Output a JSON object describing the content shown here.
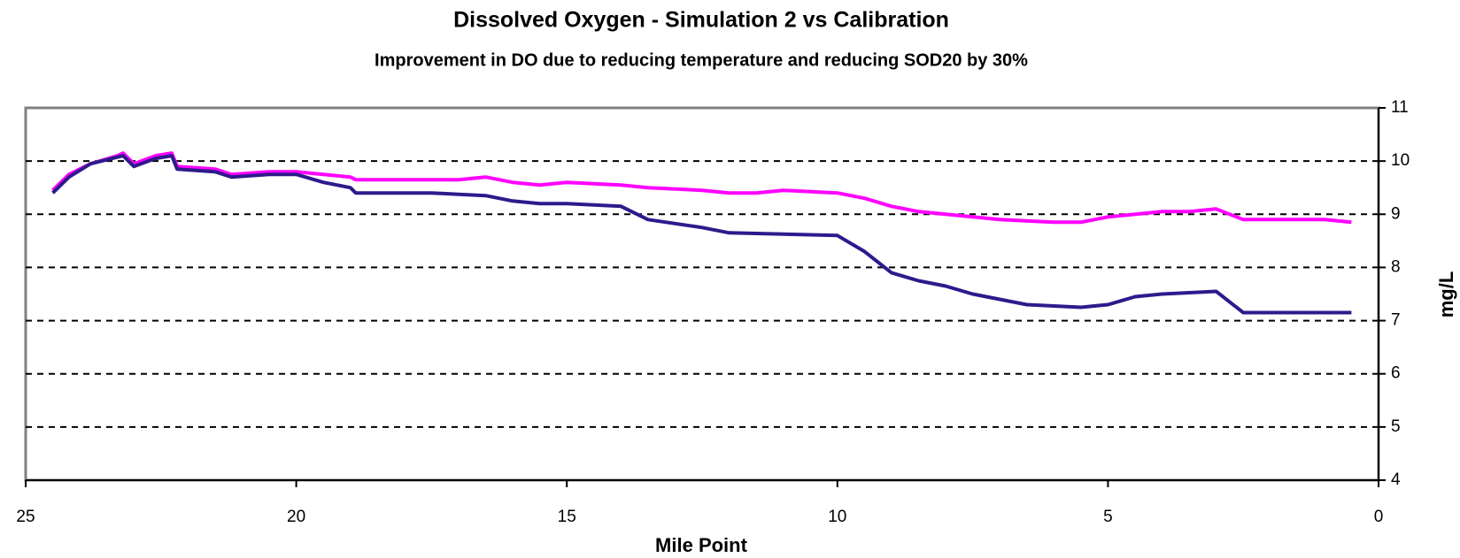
{
  "chart_data": {
    "type": "line",
    "title": "Dissolved Oxygen - Simulation 2 vs Calibration",
    "subtitle": "Improvement in DO due to reducing temperature and reducing SOD20 by 30%",
    "xlabel": "Mile Point",
    "ylabel": "mg/L",
    "xlim": [
      25,
      0
    ],
    "xticks": [
      25,
      20,
      15,
      10,
      5,
      0
    ],
    "ylim": [
      4,
      11
    ],
    "yticks": [
      4,
      5,
      6,
      7,
      8,
      9,
      10,
      11
    ],
    "grid": true,
    "y_axis_side": "right",
    "series": [
      {
        "color": "#ff00ff",
        "x": [
          24.5,
          24.2,
          23.8,
          23.3,
          23.2,
          23.0,
          22.6,
          22.3,
          22.2,
          21.5,
          21.2,
          20.5,
          20.0,
          19.5,
          19.0,
          18.9,
          17.0,
          16.5,
          16.0,
          15.5,
          15.0,
          14.0,
          13.5,
          12.5,
          12.0,
          11.5,
          11.0,
          10.0,
          9.5,
          9.0,
          8.5,
          8.0,
          7.0,
          6.0,
          5.5,
          5.0,
          4.0,
          3.5,
          3.0,
          2.5,
          1.0,
          0.5
        ],
        "values": [
          9.45,
          9.75,
          9.95,
          10.1,
          10.15,
          9.95,
          10.1,
          10.15,
          9.9,
          9.85,
          9.75,
          9.8,
          9.8,
          9.75,
          9.7,
          9.65,
          9.65,
          9.7,
          9.6,
          9.55,
          9.6,
          9.55,
          9.5,
          9.45,
          9.4,
          9.4,
          9.45,
          9.4,
          9.3,
          9.15,
          9.05,
          9.0,
          8.9,
          8.85,
          8.85,
          8.95,
          9.05,
          9.05,
          9.1,
          8.9,
          8.9,
          8.85
        ]
      },
      {
        "color": "#2e1a8c",
        "x": [
          24.5,
          24.2,
          23.8,
          23.2,
          23.0,
          22.6,
          22.3,
          22.2,
          21.5,
          21.2,
          20.5,
          20.0,
          19.5,
          19.0,
          18.9,
          17.5,
          16.5,
          16.0,
          15.5,
          15.0,
          14.0,
          13.5,
          12.5,
          12.0,
          10.0,
          9.5,
          9.0,
          8.5,
          8.0,
          7.5,
          7.0,
          6.5,
          5.5,
          5.0,
          4.5,
          4.0,
          3.0,
          2.5,
          0.5
        ],
        "values": [
          9.4,
          9.7,
          9.95,
          10.1,
          9.9,
          10.05,
          10.1,
          9.85,
          9.8,
          9.7,
          9.75,
          9.75,
          9.6,
          9.5,
          9.4,
          9.4,
          9.35,
          9.25,
          9.2,
          9.2,
          9.15,
          8.9,
          8.75,
          8.65,
          8.6,
          8.3,
          7.9,
          7.75,
          7.65,
          7.5,
          7.4,
          7.3,
          7.25,
          7.3,
          7.45,
          7.5,
          7.55,
          7.15,
          7.15
        ]
      }
    ]
  }
}
